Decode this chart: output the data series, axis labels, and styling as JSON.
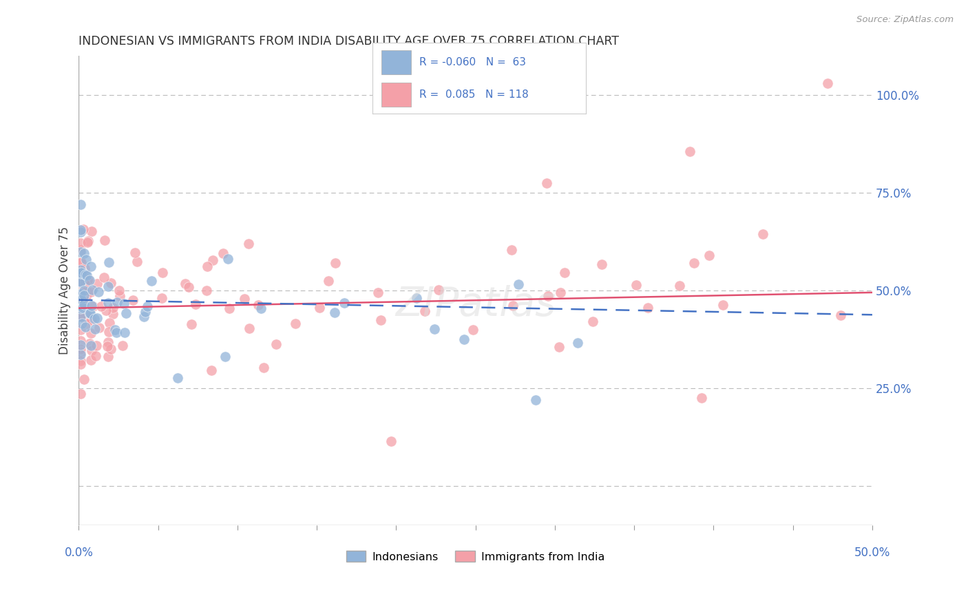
{
  "title": "INDONESIAN VS IMMIGRANTS FROM INDIA DISABILITY AGE OVER 75 CORRELATION CHART",
  "source": "Source: ZipAtlas.com",
  "ylabel": "Disability Age Over 75",
  "yaxis_labels": [
    "25.0%",
    "50.0%",
    "75.0%",
    "100.0%"
  ],
  "legend_bottom_labels": [
    "Indonesians",
    "Immigrants from India"
  ],
  "r_indonesian": -0.06,
  "n_indonesian": 63,
  "r_india": 0.085,
  "n_india": 118,
  "indonesian_color": "#92B4D9",
  "india_color": "#F4A0A8",
  "indonesian_line_color": "#4472C4",
  "india_line_color": "#E05070",
  "background_color": "#FFFFFF",
  "grid_color": "#BBBBBB",
  "xlim": [
    0.0,
    0.5
  ],
  "ylim": [
    -0.1,
    1.1
  ]
}
